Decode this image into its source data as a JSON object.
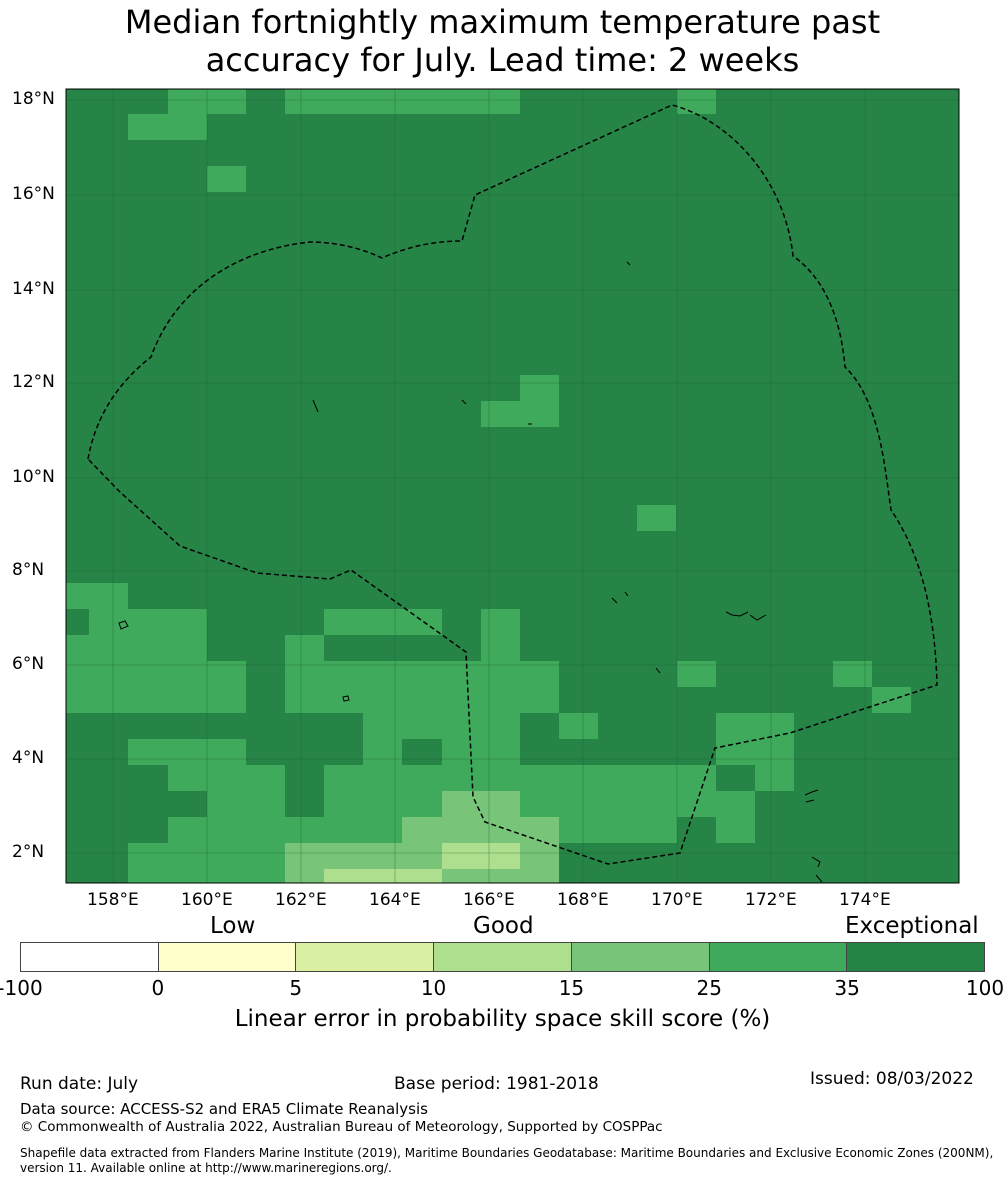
{
  "title": {
    "line1": "Median fortnightly maximum temperature past",
    "line2": "accuracy for July. Lead time: 2 weeks"
  },
  "map": {
    "lon_labels": [
      "158°E",
      "160°E",
      "162°E",
      "164°E",
      "166°E",
      "168°E",
      "170°E",
      "172°E",
      "174°E"
    ],
    "lat_labels": [
      "18°N",
      "16°N",
      "14°N",
      "12°N",
      "10°N",
      "8°N",
      "6°N",
      "4°N",
      "2°N"
    ],
    "category_colors": {
      "ge35": "#268446",
      "c25_35": "#40aa5c",
      "c15_25": "#78c57a",
      "c10_15": "#addf8f",
      "c5_10": "#d9f0a3",
      "c0_5": "#ffffcc",
      "lt0": "#ffffff"
    },
    "boundary_style": "dashed black",
    "grid": true
  },
  "colorbar": {
    "category_labels": {
      "low": "Low",
      "good": "Good",
      "exceptional": "Exceptional"
    },
    "ticks": [
      "-100",
      "0",
      "5",
      "10",
      "15",
      "25",
      "35",
      "100"
    ],
    "colors": [
      "#ffffff",
      "#ffffcc",
      "#d9f0a3",
      "#addf8f",
      "#78c57a",
      "#40aa5c",
      "#268446"
    ],
    "xlabel": "Linear error in probability space skill score (%)"
  },
  "footer": {
    "run_date": "Run date: July",
    "base_period": "Base period: 1981-2018",
    "issued": "Issued: 08/03/2022",
    "data_source": "Data source: ACCESS-S2 and ERA5 Climate Reanalysis",
    "copyright": "© Commonwealth of Australia 2022, Australian Bureau of Meteorology, Supported by COSPPac",
    "shapefile": "Shapefile data extracted from Flanders Marine Institute (2019), Maritime Boundaries Geodatabase: Maritime Boundaries and Exclusive Economic Zones (200NM), version 11. Available online at http://www.marineregions.org/."
  }
}
